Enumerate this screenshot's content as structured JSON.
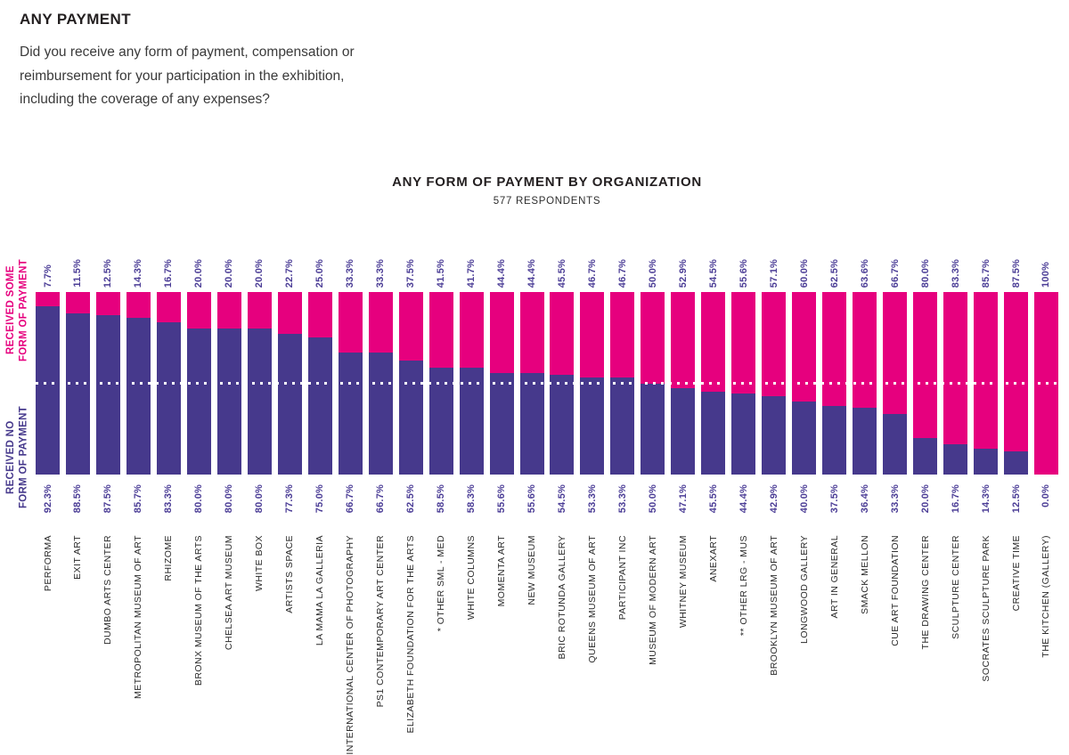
{
  "page": {
    "title": "ANY PAYMENT",
    "question": "Did you receive any form of payment, compensation or\nreimbursement for your participation in the exhibition,\nincluding the coverage of any expenses?"
  },
  "chart": {
    "title": "ANY FORM OF PAYMENT BY ORGANIZATION",
    "subtitle": "577 RESPONDENTS",
    "legend": {
      "some": "RECEIVED SOME\nFORM OF PAYMENT",
      "no": "RECEIVED NO\nFORM OF PAYMENT"
    }
  },
  "colors": {
    "pink": "#e6007e",
    "purple": "#46398c",
    "label_purple": "#4b3d96",
    "text_dark": "#231f20"
  },
  "chart_data": {
    "type": "bar",
    "stacked": true,
    "orientation": "vertical",
    "title": "ANY FORM OF PAYMENT BY ORGANIZATION",
    "subtitle": "577 RESPONDENTS",
    "ylim": [
      0,
      100
    ],
    "grid": false,
    "gridline": {
      "style": "white-dotted",
      "at_percent": 50
    },
    "legend_position": "left",
    "categories": [
      "PERFORMA",
      "EXIT ART",
      "DUMBO ARTS CENTER",
      "METROPOLITAN MUSEUM OF ART",
      "RHIZOME",
      "BRONX MUSEUM OF THE ARTS",
      "CHELSEA ART MUSEUM",
      "WHITE BOX",
      "ARTISTS SPACE",
      "LA MAMA LA GALLERIA",
      "INTERNATIONAL CENTER OF PHOTOGRAPHY",
      "PS1 CONTEMPORARY ART CENTER",
      "ELIZABETH FOUNDATION FOR THE ARTS",
      "* OTHER SML - MED",
      "WHITE COLUMNS",
      "MOMENTA ART",
      "NEW MUSEUM",
      "BRIC ROTUNDA GALLERY",
      "QUEENS MUSEUM OF ART",
      "PARTICIPANT INC",
      "MUSEUM OF MODERN ART",
      "WHITNEY MUSEUM",
      "ANEXART",
      "** OTHER LRG - MUS",
      "BROOKLYN MUSEUM OF ART",
      "LONGWOOD GALLERY",
      "ART IN GENERAL",
      "SMACK MELLON",
      "CUE ART FOUNDATION",
      "THE DRAWING CENTER",
      "SCULPTURE CENTER",
      "SOCRATES SCULPTURE PARK",
      "CREATIVE TIME",
      "THE KITCHEN (GALLERY)"
    ],
    "series": [
      {
        "name": "RECEIVED SOME FORM OF PAYMENT",
        "color": "#e6007e",
        "stack_position": "top",
        "labels": [
          "7.7%",
          "11.5%",
          "12.5%",
          "14.3%",
          "16.7%",
          "20.0%",
          "20.0%",
          "20.0%",
          "22.7%",
          "25.0%",
          "33.3%",
          "33.3%",
          "37.5%",
          "41.5%",
          "41.7%",
          "44.4%",
          "44.4%",
          "45.5%",
          "46.7%",
          "46.7%",
          "50.0%",
          "52.9%",
          "54.5%",
          "55.6%",
          "57.1%",
          "60.0%",
          "62.5%",
          "63.6%",
          "66.7%",
          "80.0%",
          "83.3%",
          "85.7%",
          "87.5%",
          "100%"
        ],
        "values": [
          7.7,
          11.5,
          12.5,
          14.3,
          16.7,
          20.0,
          20.0,
          20.0,
          22.7,
          25.0,
          33.3,
          33.3,
          37.5,
          41.5,
          41.7,
          44.4,
          44.4,
          45.5,
          46.7,
          46.7,
          50.0,
          52.9,
          54.5,
          55.6,
          57.1,
          60.0,
          62.5,
          63.6,
          66.7,
          80.0,
          83.3,
          85.7,
          87.5,
          100.0
        ]
      },
      {
        "name": "RECEIVED NO FORM OF PAYMENT",
        "color": "#46398c",
        "stack_position": "bottom",
        "labels": [
          "92.3%",
          "88.5%",
          "87.5%",
          "85.7%",
          "83.3%",
          "80.0%",
          "80.0%",
          "80.0%",
          "77.3%",
          "75.0%",
          "66.7%",
          "66.7%",
          "62.5%",
          "58.5%",
          "58.3%",
          "55.6%",
          "55.6%",
          "54.5%",
          "53.3%",
          "53.3%",
          "50.0%",
          "47.1%",
          "45.5%",
          "44.4%",
          "42.9%",
          "40.0%",
          "37.5%",
          "36.4%",
          "33.3%",
          "20.0%",
          "16.7%",
          "14.3%",
          "12.5%",
          "0.0%"
        ],
        "values": [
          92.3,
          88.5,
          87.5,
          85.7,
          83.3,
          80.0,
          80.0,
          80.0,
          77.3,
          75.0,
          66.7,
          66.7,
          62.5,
          58.5,
          58.3,
          55.6,
          55.6,
          54.5,
          53.3,
          53.3,
          50.0,
          47.1,
          45.5,
          44.4,
          42.9,
          40.0,
          37.5,
          36.4,
          33.3,
          20.0,
          16.7,
          14.3,
          12.5,
          0.0
        ]
      }
    ]
  }
}
